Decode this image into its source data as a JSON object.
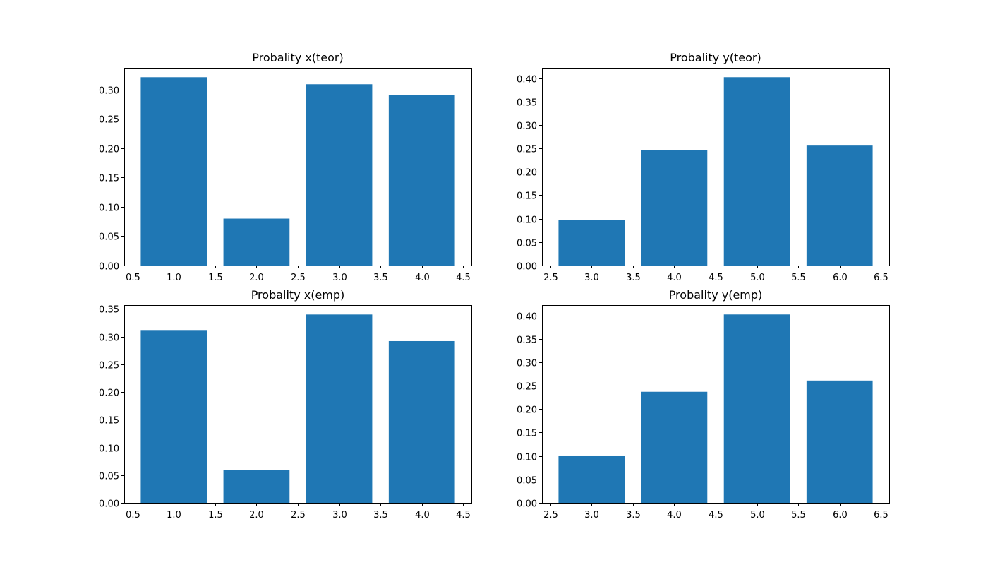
{
  "chart_data": [
    {
      "type": "bar",
      "title": "Probality x(teor)",
      "x": [
        1,
        2,
        3,
        4
      ],
      "values": [
        0.321,
        0.08,
        0.309,
        0.291
      ],
      "xlim": [
        0.4,
        4.6
      ],
      "ylim": [
        0,
        0.337
      ],
      "xticks": [
        0.5,
        1.0,
        1.5,
        2.0,
        2.5,
        3.0,
        3.5,
        4.0,
        4.5
      ],
      "xtick_labels": [
        "0.5",
        "1.0",
        "1.5",
        "2.0",
        "2.5",
        "3.0",
        "3.5",
        "4.0",
        "4.5"
      ],
      "yticks": [
        0,
        0.05,
        0.1,
        0.15,
        0.2,
        0.25,
        0.3
      ],
      "ytick_labels": [
        "0.00",
        "0.05",
        "0.10",
        "0.15",
        "0.20",
        "0.25",
        "0.30"
      ],
      "bar_color": "#1f77b4",
      "xlabel": "",
      "ylabel": "",
      "grid": false
    },
    {
      "type": "bar",
      "title": "Probality y(teor)",
      "x": [
        3,
        4,
        5,
        6
      ],
      "values": [
        0.097,
        0.246,
        0.402,
        0.256
      ],
      "xlim": [
        2.4,
        6.6
      ],
      "ylim": [
        0,
        0.422
      ],
      "xticks": [
        2.5,
        3.0,
        3.5,
        4.0,
        4.5,
        5.0,
        5.5,
        6.0,
        6.5
      ],
      "xtick_labels": [
        "2.5",
        "3.0",
        "3.5",
        "4.0",
        "4.5",
        "5.0",
        "5.5",
        "6.0",
        "6.5"
      ],
      "yticks": [
        0,
        0.05,
        0.1,
        0.15,
        0.2,
        0.25,
        0.3,
        0.35,
        0.4
      ],
      "ytick_labels": [
        "0.00",
        "0.05",
        "0.10",
        "0.15",
        "0.20",
        "0.25",
        "0.30",
        "0.35",
        "0.40"
      ],
      "bar_color": "#1f77b4",
      "xlabel": "",
      "ylabel": "",
      "grid": false
    },
    {
      "type": "bar",
      "title": "Probality x(emp)",
      "x": [
        1,
        2,
        3,
        4
      ],
      "values": [
        0.312,
        0.059,
        0.34,
        0.292
      ],
      "xlim": [
        0.4,
        4.6
      ],
      "ylim": [
        0,
        0.357
      ],
      "xticks": [
        0.5,
        1.0,
        1.5,
        2.0,
        2.5,
        3.0,
        3.5,
        4.0,
        4.5
      ],
      "xtick_labels": [
        "0.5",
        "1.0",
        "1.5",
        "2.0",
        "2.5",
        "3.0",
        "3.5",
        "4.0",
        "4.5"
      ],
      "yticks": [
        0,
        0.05,
        0.1,
        0.15,
        0.2,
        0.25,
        0.3,
        0.35
      ],
      "ytick_labels": [
        "0.00",
        "0.05",
        "0.10",
        "0.15",
        "0.20",
        "0.25",
        "0.30",
        "0.35"
      ],
      "bar_color": "#1f77b4",
      "xlabel": "",
      "ylabel": "",
      "grid": false
    },
    {
      "type": "bar",
      "title": "Probality y(emp)",
      "x": [
        3,
        4,
        5,
        6
      ],
      "values": [
        0.101,
        0.237,
        0.402,
        0.261
      ],
      "xlim": [
        2.4,
        6.6
      ],
      "ylim": [
        0,
        0.422
      ],
      "xticks": [
        2.5,
        3.0,
        3.5,
        4.0,
        4.5,
        5.0,
        5.5,
        6.0,
        6.5
      ],
      "xtick_labels": [
        "2.5",
        "3.0",
        "3.5",
        "4.0",
        "4.5",
        "5.0",
        "5.5",
        "6.0",
        "6.5"
      ],
      "yticks": [
        0,
        0.05,
        0.1,
        0.15,
        0.2,
        0.25,
        0.3,
        0.35,
        0.4
      ],
      "ytick_labels": [
        "0.00",
        "0.05",
        "0.10",
        "0.15",
        "0.20",
        "0.25",
        "0.30",
        "0.35",
        "0.40"
      ],
      "bar_color": "#1f77b4",
      "xlabel": "",
      "ylabel": "",
      "grid": false
    }
  ]
}
